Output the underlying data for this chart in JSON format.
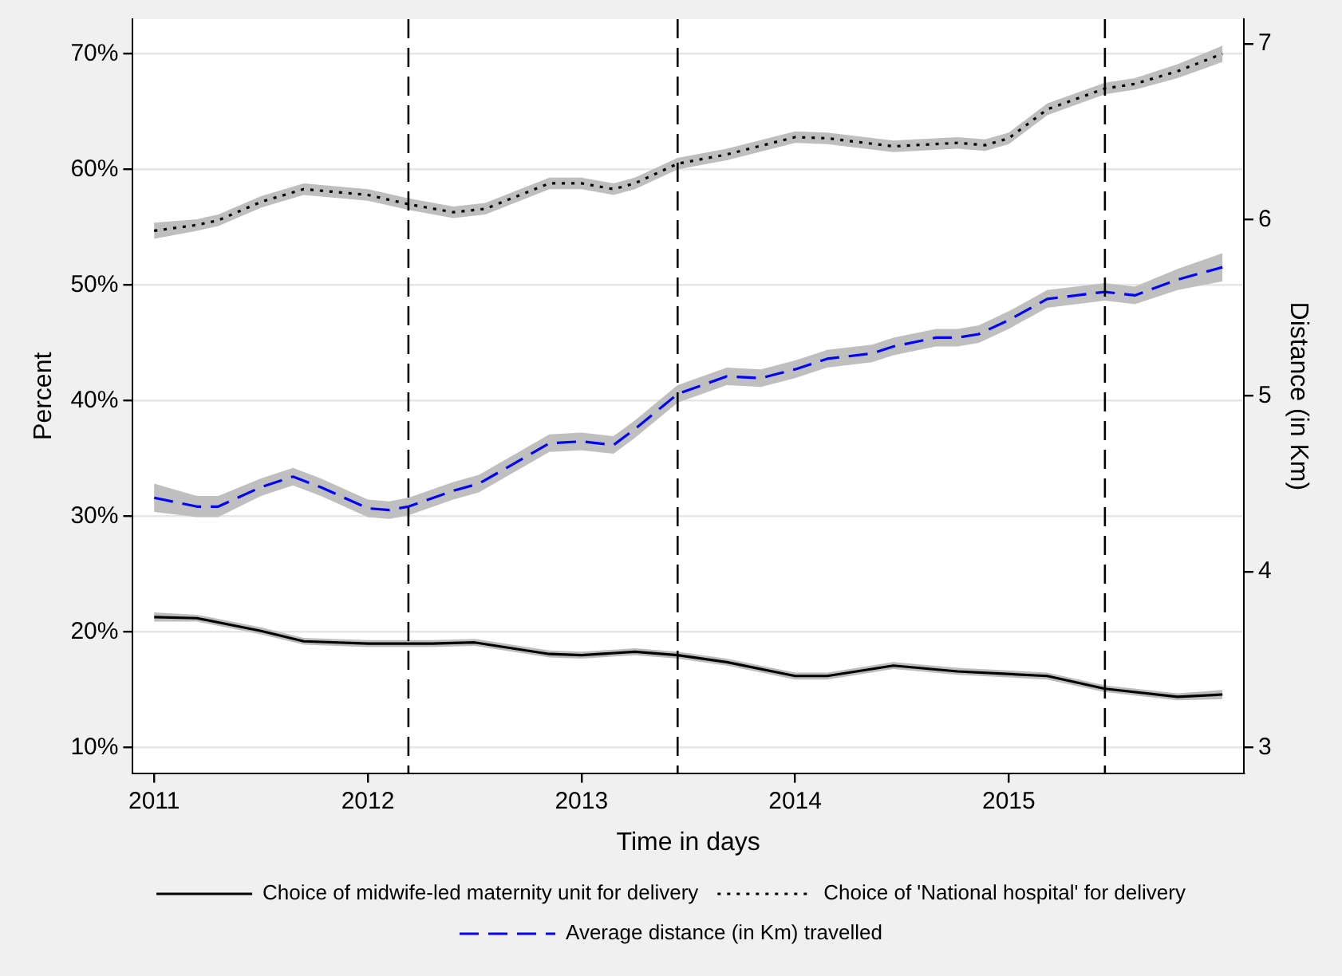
{
  "chart_data": {
    "type": "line",
    "xlabel": "Time in days",
    "ylabel": "Percent",
    "y2label": "Distance (in Km)",
    "xlim": [
      2010.9,
      2016.1
    ],
    "xticks": [
      2011,
      2012,
      2013,
      2014,
      2015
    ],
    "ylim": [
      7.8,
      73
    ],
    "yticks": [
      {
        "value": 10,
        "label": "10%"
      },
      {
        "value": 20,
        "label": "20%"
      },
      {
        "value": 30,
        "label": "30%"
      },
      {
        "value": 40,
        "label": "40%"
      },
      {
        "value": 50,
        "label": "50%"
      },
      {
        "value": 60,
        "label": "60%"
      },
      {
        "value": 70,
        "label": "70%"
      }
    ],
    "y2lim": [
      2.855,
      7.14
    ],
    "y2ticks": [
      3,
      4,
      5,
      6,
      7
    ],
    "grid": "y",
    "legend": "bottom",
    "marker": "none",
    "ref_lines": [
      {
        "axis": "x",
        "value": 2012.19,
        "color": "#000000",
        "line_style": "dashed"
      },
      {
        "axis": "x",
        "value": 2013.45,
        "color": "#000000",
        "line_style": "dashed"
      },
      {
        "axis": "x",
        "value": 2015.45,
        "color": "#000000",
        "line_style": "dashed"
      }
    ],
    "series": [
      {
        "name": "Choice of midwife-led maternity unit for delivery",
        "color": "#000000",
        "line_style": "solid",
        "x": [
          2011,
          2011.2,
          2011.5,
          2011.7,
          2012,
          2012.3,
          2012.5,
          2012.85,
          2013,
          2013.25,
          2013.45,
          2013.68,
          2014,
          2014.15,
          2014.46,
          2014.76,
          2015.18,
          2015.45,
          2015.79,
          2016
        ],
        "values": [
          21.3,
          21.2,
          20.1,
          19.2,
          19.0,
          19.0,
          19.1,
          18.1,
          18.0,
          18.3,
          18.0,
          17.4,
          16.2,
          16.2,
          17.1,
          16.6,
          16.2,
          15.1,
          14.4,
          14.6
        ],
        "lower": [
          20.9,
          20.9,
          19.8,
          18.9,
          18.7,
          18.7,
          18.8,
          17.8,
          17.7,
          18.0,
          17.7,
          17.1,
          15.9,
          15.9,
          16.8,
          16.3,
          15.9,
          14.8,
          14.1,
          14.2
        ],
        "upper": [
          21.7,
          21.5,
          20.4,
          19.5,
          19.3,
          19.3,
          19.4,
          18.4,
          18.3,
          18.6,
          18.3,
          17.7,
          16.5,
          16.5,
          17.4,
          16.9,
          16.5,
          15.4,
          14.7,
          15.0
        ]
      },
      {
        "name": "Choice of 'National hospital' for delivery",
        "color": "#000000",
        "line_style": "dotted",
        "x": [
          2011,
          2011.2,
          2011.3,
          2011.5,
          2011.7,
          2012,
          2012.19,
          2012.4,
          2012.55,
          2012.85,
          2013,
          2013.15,
          2013.25,
          2013.45,
          2013.68,
          2014,
          2014.15,
          2014.46,
          2014.76,
          2014.89,
          2015,
          2015.18,
          2015.45,
          2015.59,
          2015.79,
          2016
        ],
        "values": [
          54.7,
          55.2,
          55.6,
          57.2,
          58.3,
          57.8,
          57.0,
          56.3,
          56.6,
          58.8,
          58.8,
          58.3,
          58.8,
          60.5,
          61.3,
          62.8,
          62.7,
          62.0,
          62.3,
          62.1,
          62.7,
          65.2,
          67.0,
          67.4,
          68.5,
          70.0
        ],
        "lower": [
          54.0,
          54.7,
          55.1,
          56.7,
          57.8,
          57.3,
          56.5,
          55.8,
          56.1,
          58.3,
          58.3,
          57.8,
          58.3,
          60.0,
          60.8,
          62.3,
          62.2,
          61.5,
          61.8,
          61.6,
          62.2,
          64.7,
          66.5,
          66.9,
          67.9,
          69.3
        ],
        "upper": [
          55.4,
          55.7,
          56.1,
          57.7,
          58.8,
          58.3,
          57.5,
          56.8,
          57.1,
          59.3,
          59.3,
          58.8,
          59.3,
          61.0,
          61.8,
          63.3,
          63.2,
          62.5,
          62.8,
          62.6,
          63.2,
          65.7,
          67.5,
          67.9,
          69.1,
          70.7
        ]
      },
      {
        "name": "Average distance (in Km) travelled",
        "color": "#0000ff",
        "line_style": "dashed",
        "axis": "y2",
        "x": [
          2011,
          2011.2,
          2011.3,
          2011.5,
          2011.65,
          2011.78,
          2012,
          2012.1,
          2012.19,
          2012.4,
          2012.52,
          2012.85,
          2013,
          2013.15,
          2013.25,
          2013.45,
          2013.68,
          2013.84,
          2014,
          2014.15,
          2014.36,
          2014.46,
          2014.66,
          2014.76,
          2014.86,
          2015,
          2015.18,
          2015.45,
          2015.59,
          2015.79,
          2016
        ],
        "values": [
          4.42,
          4.37,
          4.37,
          4.48,
          4.54,
          4.48,
          4.36,
          4.35,
          4.37,
          4.46,
          4.5,
          4.73,
          4.74,
          4.72,
          4.81,
          5.01,
          5.11,
          5.1,
          5.15,
          5.21,
          5.24,
          5.28,
          5.33,
          5.33,
          5.35,
          5.43,
          5.55,
          5.59,
          5.57,
          5.66,
          5.73
        ],
        "lower": [
          4.34,
          4.31,
          4.31,
          4.43,
          4.49,
          4.43,
          4.31,
          4.3,
          4.32,
          4.41,
          4.45,
          4.68,
          4.69,
          4.67,
          4.76,
          4.96,
          5.06,
          5.05,
          5.1,
          5.16,
          5.19,
          5.23,
          5.28,
          5.28,
          5.3,
          5.38,
          5.5,
          5.54,
          5.52,
          5.6,
          5.65
        ],
        "upper": [
          4.5,
          4.43,
          4.43,
          4.53,
          4.59,
          4.53,
          4.41,
          4.4,
          4.42,
          4.51,
          4.55,
          4.78,
          4.79,
          4.77,
          4.86,
          5.06,
          5.16,
          5.15,
          5.2,
          5.26,
          5.29,
          5.33,
          5.38,
          5.38,
          5.4,
          5.48,
          5.6,
          5.64,
          5.62,
          5.72,
          5.81
        ]
      }
    ]
  }
}
